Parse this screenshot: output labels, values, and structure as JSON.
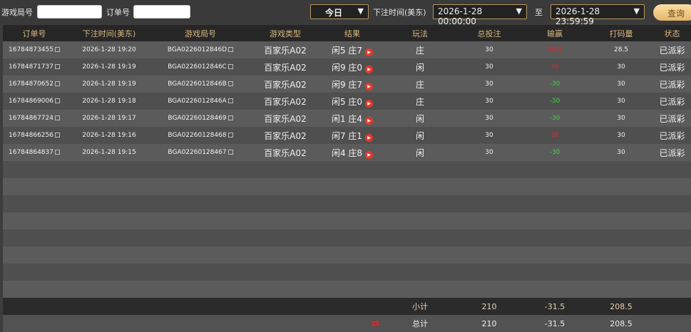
{
  "filters": {
    "game_id_label": "游戏局号",
    "game_id_value": "",
    "order_label": "订单号",
    "order_value": "",
    "period": "今日",
    "time_label": "下注时间(美东)",
    "start": "2026-1-28 00:00:00",
    "to": "至",
    "end": "2026-1-28 23:59:59",
    "query": "查询"
  },
  "columns": [
    "订单号",
    "下注时间(美东)",
    "游戏局号",
    "游戏类型",
    "结果",
    "玩法",
    "总投注",
    "输赢",
    "打码量",
    "状态"
  ],
  "rows": [
    {
      "order": "16784873455",
      "time": "2026-1-28 19:20",
      "game": "BGA0226012846D",
      "type": "百家乐A02",
      "result": "闲5 庄7",
      "play": "庄",
      "bet": "30",
      "win": "28.5",
      "win_color": "#e0282a",
      "turnover": "28.5",
      "status": "已派彩"
    },
    {
      "order": "16784871737",
      "time": "2026-1-28 19:19",
      "game": "BGA0226012846C",
      "type": "百家乐A02",
      "result": "闲9 庄0",
      "play": "闲",
      "bet": "30",
      "win": "30",
      "win_color": "#e0282a",
      "turnover": "30",
      "status": "已派彩"
    },
    {
      "order": "16784870652",
      "time": "2026-1-28 19:19",
      "game": "BGA0226012846B",
      "type": "百家乐A02",
      "result": "闲9 庄7",
      "play": "庄",
      "bet": "30",
      "win": "-30",
      "win_color": "#3ed33e",
      "turnover": "30",
      "status": "已派彩"
    },
    {
      "order": "16784869006",
      "time": "2026-1-28 19:18",
      "game": "BGA0226012846A",
      "type": "百家乐A02",
      "result": "闲5 庄0",
      "play": "庄",
      "bet": "30",
      "win": "-30",
      "win_color": "#3ed33e",
      "turnover": "30",
      "status": "已派彩"
    },
    {
      "order": "16784867724",
      "time": "2026-1-28 19:17",
      "game": "BGA02260128469",
      "type": "百家乐A02",
      "result": "闲1 庄4",
      "play": "闲",
      "bet": "30",
      "win": "-30",
      "win_color": "#3ed33e",
      "turnover": "30",
      "status": "已派彩"
    },
    {
      "order": "16784866256",
      "time": "2026-1-28 19:16",
      "game": "BGA02260128468",
      "type": "百家乐A02",
      "result": "闲7 庄1",
      "play": "闲",
      "bet": "30",
      "win": "30",
      "win_color": "#e0282a",
      "turnover": "30",
      "status": "已派彩"
    },
    {
      "order": "16784864837",
      "time": "2026-1-28 19:15",
      "game": "BGA02260128467",
      "type": "百家乐A02",
      "result": "闲4 庄8",
      "play": "闲",
      "bet": "30",
      "win": "-30",
      "win_color": "#3ed33e",
      "turnover": "30",
      "status": "已派彩"
    }
  ],
  "subtotal": {
    "label": "小计",
    "bet": "210",
    "win": "-31.5",
    "turnover": "208.5"
  },
  "total": {
    "label": "总计",
    "bet": "210",
    "win": "-31.5",
    "turnover": "208.5"
  }
}
